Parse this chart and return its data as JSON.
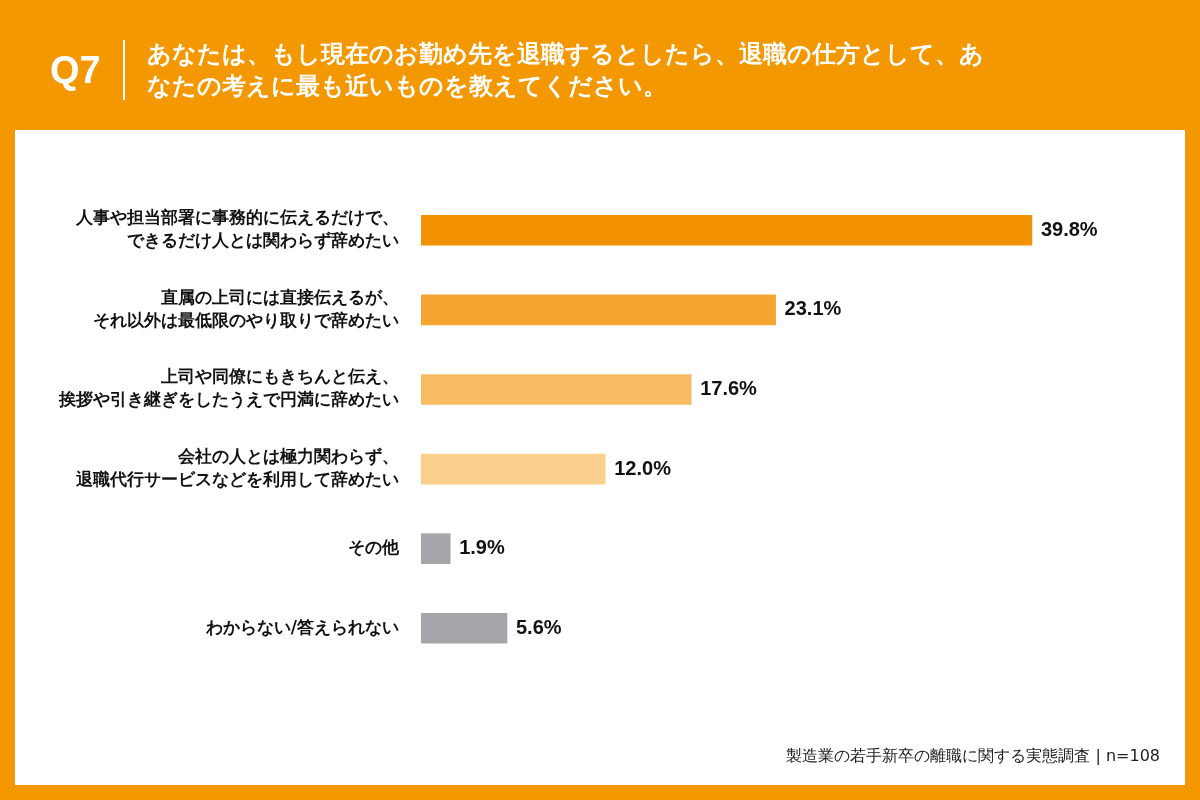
{
  "chart_data": {
    "type": "bar",
    "orientation": "horizontal",
    "title": "Q7",
    "subtitle": "あなたは、もし現在のお勤め先を退職するとしたら、退職の仕方として、あなたの考えに最も近いものを教えてください。",
    "categories": [
      "人事や担当部署に事務的に伝えるだけで、できるだけ人とは関わらず辞めたい",
      "直属の上司には直接伝えるが、それ以外は最低限のやり取りで辞めたい",
      "上司や同僚にもきちんと伝え、挨拶や引き継ぎをしたうえで円満に辞めたい",
      "会社の人とは極力関わらず、退職代行サービスなどを利用して辞めたい",
      "その他",
      "わからない/答えられない"
    ],
    "values": [
      39.8,
      23.1,
      17.6,
      12.0,
      1.9,
      5.6
    ],
    "value_labels": [
      "39.8%",
      "23.1%",
      "17.6%",
      "12.0%",
      "1.9%",
      "5.6%"
    ],
    "colors": [
      "#f39200",
      "#f5a432",
      "#f8bb62",
      "#fbcf8c",
      "#a7a5aa",
      "#a7a5aa"
    ],
    "tick_labels": "y",
    "grid": false,
    "legend": false,
    "annotations": [
      "製造業の若手新卒の離職に関する実態調査 | n=108"
    ]
  }
}
